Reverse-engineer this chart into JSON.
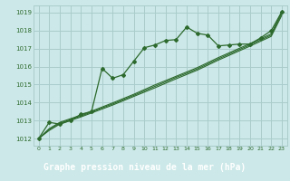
{
  "title": "Graphe pression niveau de la mer (hPa)",
  "bg_color": "#cce8e8",
  "label_bg_color": "#2d6a2d",
  "label_text_color": "#ffffff",
  "grid_color": "#aacccc",
  "line_color": "#2d6a2d",
  "xlim": [
    -0.5,
    23.5
  ],
  "ylim": [
    1011.6,
    1019.4
  ],
  "yticks": [
    1012,
    1013,
    1014,
    1015,
    1016,
    1017,
    1018,
    1019
  ],
  "xticks": [
    0,
    1,
    2,
    3,
    4,
    5,
    6,
    7,
    8,
    9,
    10,
    11,
    12,
    13,
    14,
    15,
    16,
    17,
    18,
    19,
    20,
    21,
    22,
    23
  ],
  "main_series": [
    1012.0,
    1012.9,
    1012.8,
    1013.0,
    1013.35,
    1013.5,
    1015.9,
    1015.35,
    1015.55,
    1016.3,
    1017.05,
    1017.2,
    1017.45,
    1017.5,
    1018.2,
    1017.85,
    1017.75,
    1017.15,
    1017.2,
    1017.25,
    1017.25,
    1017.6,
    1018.0,
    1019.05
  ],
  "smooth1": [
    1012.0,
    1012.55,
    1012.9,
    1013.1,
    1013.3,
    1013.52,
    1013.75,
    1013.98,
    1014.22,
    1014.46,
    1014.72,
    1014.98,
    1015.22,
    1015.46,
    1015.7,
    1015.94,
    1016.22,
    1016.5,
    1016.76,
    1017.02,
    1017.28,
    1017.55,
    1017.82,
    1019.05
  ],
  "smooth2": [
    1012.0,
    1012.5,
    1012.85,
    1013.05,
    1013.25,
    1013.47,
    1013.7,
    1013.92,
    1014.16,
    1014.4,
    1014.65,
    1014.9,
    1015.15,
    1015.4,
    1015.63,
    1015.87,
    1016.15,
    1016.43,
    1016.69,
    1016.95,
    1017.21,
    1017.48,
    1017.75,
    1018.95
  ],
  "smooth3": [
    1012.0,
    1012.45,
    1012.8,
    1013.0,
    1013.2,
    1013.42,
    1013.64,
    1013.86,
    1014.1,
    1014.34,
    1014.58,
    1014.82,
    1015.07,
    1015.32,
    1015.56,
    1015.8,
    1016.08,
    1016.36,
    1016.62,
    1016.88,
    1017.14,
    1017.41,
    1017.68,
    1018.85
  ]
}
